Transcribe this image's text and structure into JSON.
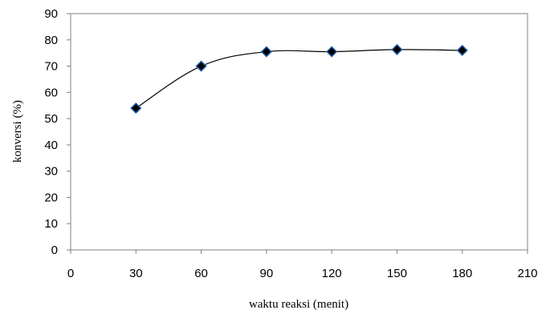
{
  "chart_data": {
    "type": "scatter",
    "title": "",
    "xlabel": "waktu reaksi (menit)",
    "ylabel": "konversi (%)",
    "xlim": [
      0,
      210
    ],
    "ylim": [
      0,
      90
    ],
    "xticks": [
      0,
      30,
      60,
      90,
      120,
      150,
      180,
      210
    ],
    "yticks": [
      0,
      10,
      20,
      30,
      40,
      50,
      60,
      70,
      80,
      90
    ],
    "grid": false,
    "legend": "none",
    "series": [
      {
        "x": [
          30,
          60,
          90,
          120,
          150,
          180
        ],
        "y": [
          54,
          70,
          75.5,
          75.5,
          76.3,
          76
        ],
        "marker": "diamond",
        "marker_color": "#000000",
        "marker_edge_color": "#1f5fa8",
        "line": "smooth",
        "line_color": "#000000"
      }
    ]
  }
}
